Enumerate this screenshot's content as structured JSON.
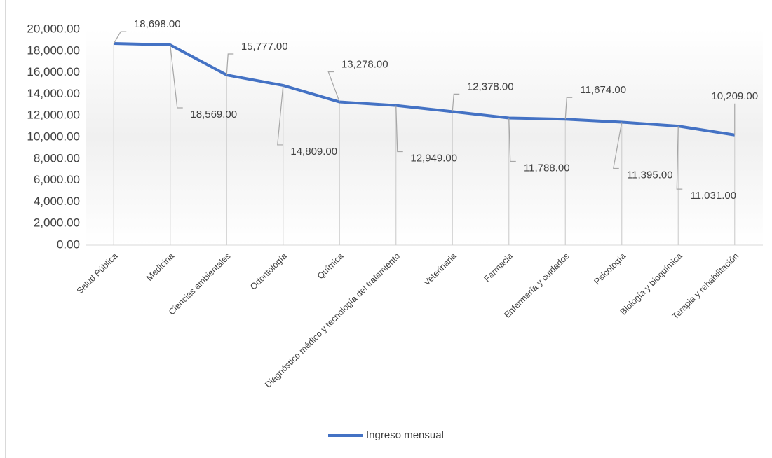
{
  "chart_data": {
    "type": "line",
    "categories": [
      "Salud Pública",
      "Medicina",
      "Ciencias ambientales",
      "Odontología",
      "Química",
      "Diagnóstico médico y tecnología del tratamiento",
      "Veterinaria",
      "Farmacia",
      "Enfermería y cuidados",
      "Psicología",
      "Biología y bioquímica",
      "Terapia y rehabilitación"
    ],
    "series": [
      {
        "name": "Ingreso mensual",
        "color": "#4472c4",
        "values": [
          18698,
          18569,
          15777,
          14809,
          13278,
          12949,
          12378,
          11788,
          11674,
          11395,
          11031,
          10209
        ],
        "value_labels": [
          "18,698.00",
          "18,569.00",
          "15,777.00",
          "14,809.00",
          "13,278.00",
          "12,949.00",
          "12,378.00",
          "11,788.00",
          "11,674.00",
          "11,395.00",
          "11,031.00",
          "10,209.00"
        ]
      }
    ],
    "ylim": [
      0,
      20000
    ],
    "yticks": [
      {
        "value": 0,
        "label": "0.00"
      },
      {
        "value": 2000,
        "label": "2,000.00"
      },
      {
        "value": 4000,
        "label": "4,000.00"
      },
      {
        "value": 6000,
        "label": "6,000.00"
      },
      {
        "value": 8000,
        "label": "8,000.00"
      },
      {
        "value": 10000,
        "label": "10,000.00"
      },
      {
        "value": 12000,
        "label": "12,000.00"
      },
      {
        "value": 14000,
        "label": "14,000.00"
      },
      {
        "value": 16000,
        "label": "16,000.00"
      },
      {
        "value": 18000,
        "label": "18,000.00"
      },
      {
        "value": 20000,
        "label": "20,000.00"
      }
    ],
    "drop_lines": true,
    "legend": "bottom"
  }
}
